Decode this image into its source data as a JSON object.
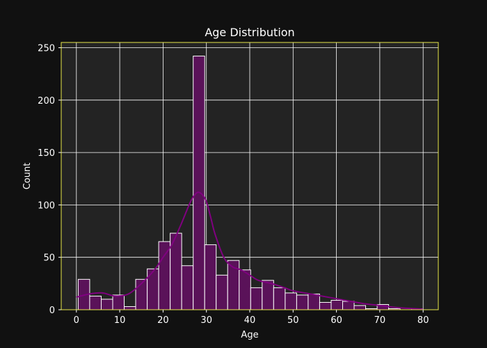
{
  "chart_data": {
    "type": "bar",
    "subtype": "histogram",
    "title": "Age Distribution",
    "xlabel": "Age",
    "ylabel": "Count",
    "xlim": [
      -3.5,
      83.5
    ],
    "ylim": [
      0,
      255
    ],
    "xticks": [
      0,
      10,
      20,
      30,
      40,
      50,
      60,
      70,
      80
    ],
    "yticks": [
      0,
      50,
      100,
      150,
      200,
      250
    ],
    "grid": true,
    "legend": "none",
    "bins": [
      {
        "start": 0.42,
        "end": 3.07,
        "count": 29
      },
      {
        "start": 3.07,
        "end": 5.73,
        "count": 13
      },
      {
        "start": 5.73,
        "end": 8.38,
        "count": 10
      },
      {
        "start": 8.38,
        "end": 11.03,
        "count": 14
      },
      {
        "start": 11.03,
        "end": 13.68,
        "count": 3
      },
      {
        "start": 13.68,
        "end": 16.34,
        "count": 29
      },
      {
        "start": 16.34,
        "end": 18.99,
        "count": 39
      },
      {
        "start": 18.99,
        "end": 21.64,
        "count": 65
      },
      {
        "start": 21.64,
        "end": 24.29,
        "count": 73
      },
      {
        "start": 24.29,
        "end": 26.95,
        "count": 42
      },
      {
        "start": 26.95,
        "end": 29.6,
        "count": 242
      },
      {
        "start": 29.6,
        "end": 32.25,
        "count": 62
      },
      {
        "start": 32.25,
        "end": 34.9,
        "count": 33
      },
      {
        "start": 34.9,
        "end": 37.56,
        "count": 47
      },
      {
        "start": 37.56,
        "end": 40.21,
        "count": 38
      },
      {
        "start": 40.21,
        "end": 42.86,
        "count": 21
      },
      {
        "start": 42.86,
        "end": 45.51,
        "count": 28
      },
      {
        "start": 45.51,
        "end": 48.17,
        "count": 21
      },
      {
        "start": 48.17,
        "end": 50.82,
        "count": 16
      },
      {
        "start": 50.82,
        "end": 53.47,
        "count": 14
      },
      {
        "start": 53.47,
        "end": 56.12,
        "count": 15
      },
      {
        "start": 56.12,
        "end": 58.78,
        "count": 7
      },
      {
        "start": 58.78,
        "end": 61.43,
        "count": 9
      },
      {
        "start": 61.43,
        "end": 64.08,
        "count": 8
      },
      {
        "start": 64.08,
        "end": 66.73,
        "count": 4
      },
      {
        "start": 66.73,
        "end": 69.39,
        "count": 1
      },
      {
        "start": 69.39,
        "end": 72.04,
        "count": 5
      },
      {
        "start": 72.04,
        "end": 74.69,
        "count": 1
      },
      {
        "start": 74.69,
        "end": 77.34,
        "count": 0
      },
      {
        "start": 77.34,
        "end": 80.0,
        "count": 1
      }
    ],
    "kde": {
      "x": [
        0,
        3,
        6,
        9,
        12,
        15,
        18,
        20,
        22,
        24,
        26,
        27,
        28,
        29,
        30,
        31,
        32,
        34,
        36,
        38,
        40,
        42,
        45,
        48,
        50,
        54,
        58,
        62,
        66,
        70,
        74,
        78,
        80
      ],
      "y": [
        12,
        15,
        16,
        13,
        15,
        25,
        38,
        50,
        62,
        80,
        100,
        108,
        112,
        110,
        103,
        88,
        72,
        50,
        41,
        38,
        33,
        28,
        25,
        21,
        18,
        15,
        12,
        9,
        6,
        4,
        2,
        1,
        0.5
      ]
    },
    "colors": {
      "figure_background": "#111111",
      "axes_background": "#232323",
      "frame": "#e8e84a",
      "grid": "#ffffff",
      "bar_fill": "#5a1259",
      "bar_edge": "#ffffff",
      "kde_line": "#800080",
      "text": "#ffffff"
    }
  }
}
